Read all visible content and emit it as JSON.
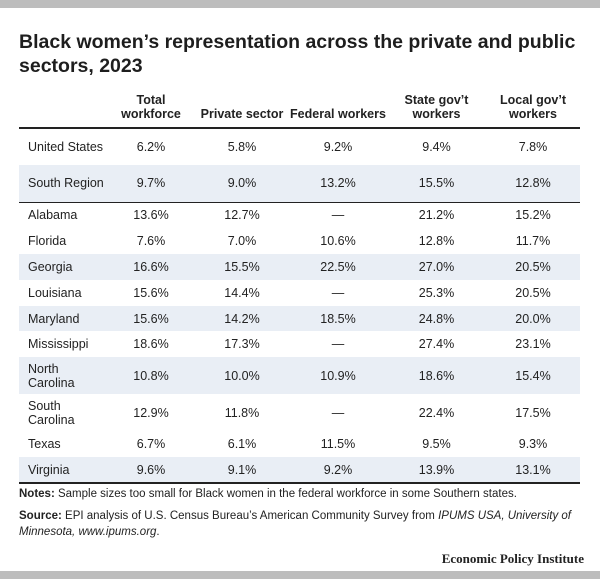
{
  "title": "Black women’s representation across the private and public sectors, 2023",
  "columns": [
    "",
    "Total workforce",
    "Private sector",
    "Federal workers",
    "State gov’t workers",
    "Local gov’t workers"
  ],
  "rows": [
    {
      "label": "United States",
      "values": [
        "6.2%",
        "5.8%",
        "9.2%",
        "9.4%",
        "7.8%"
      ]
    },
    {
      "label": "South Region",
      "values": [
        "9.7%",
        "9.0%",
        "13.2%",
        "15.5%",
        "12.8%"
      ]
    },
    {
      "label": "Alabama",
      "values": [
        "13.6%",
        "12.7%",
        "—",
        "21.2%",
        "15.2%"
      ]
    },
    {
      "label": "Florida",
      "values": [
        "7.6%",
        "7.0%",
        "10.6%",
        "12.8%",
        "11.7%"
      ]
    },
    {
      "label": "Georgia",
      "values": [
        "16.6%",
        "15.5%",
        "22.5%",
        "27.0%",
        "20.5%"
      ]
    },
    {
      "label": "Louisiana",
      "values": [
        "15.6%",
        "14.4%",
        "—",
        "25.3%",
        "20.5%"
      ]
    },
    {
      "label": "Maryland",
      "values": [
        "15.6%",
        "14.2%",
        "18.5%",
        "24.8%",
        "20.0%"
      ]
    },
    {
      "label": "Mississippi",
      "values": [
        "18.6%",
        "17.3%",
        "—",
        "27.4%",
        "23.1%"
      ]
    },
    {
      "label": "North Carolina",
      "values": [
        "10.8%",
        "10.0%",
        "10.9%",
        "18.6%",
        "15.4%"
      ]
    },
    {
      "label": "South Carolina",
      "values": [
        "12.9%",
        "11.8%",
        "—",
        "22.4%",
        "17.5%"
      ]
    },
    {
      "label": "Texas",
      "values": [
        "6.7%",
        "6.1%",
        "11.5%",
        "9.5%",
        "9.3%"
      ]
    },
    {
      "label": "Virginia",
      "values": [
        "9.6%",
        "9.1%",
        "9.2%",
        "13.9%",
        "13.1%"
      ]
    }
  ],
  "notes_label": "Notes:",
  "notes_text": " Sample sizes too small for Black women in the federal workforce in some Southern states.",
  "source_label": "Source:",
  "source_text_1": " EPI analysis of U.S. Census Bureau’s American Community Survey from ",
  "source_italic": "IPUMS USA, University of Minnesota, www.ipums.org",
  "source_text_2": ".",
  "brand": "Economic Policy Institute",
  "colors": {
    "shade": "#e9eef5",
    "rule": "#222222",
    "bar": "#bdbdbd"
  }
}
